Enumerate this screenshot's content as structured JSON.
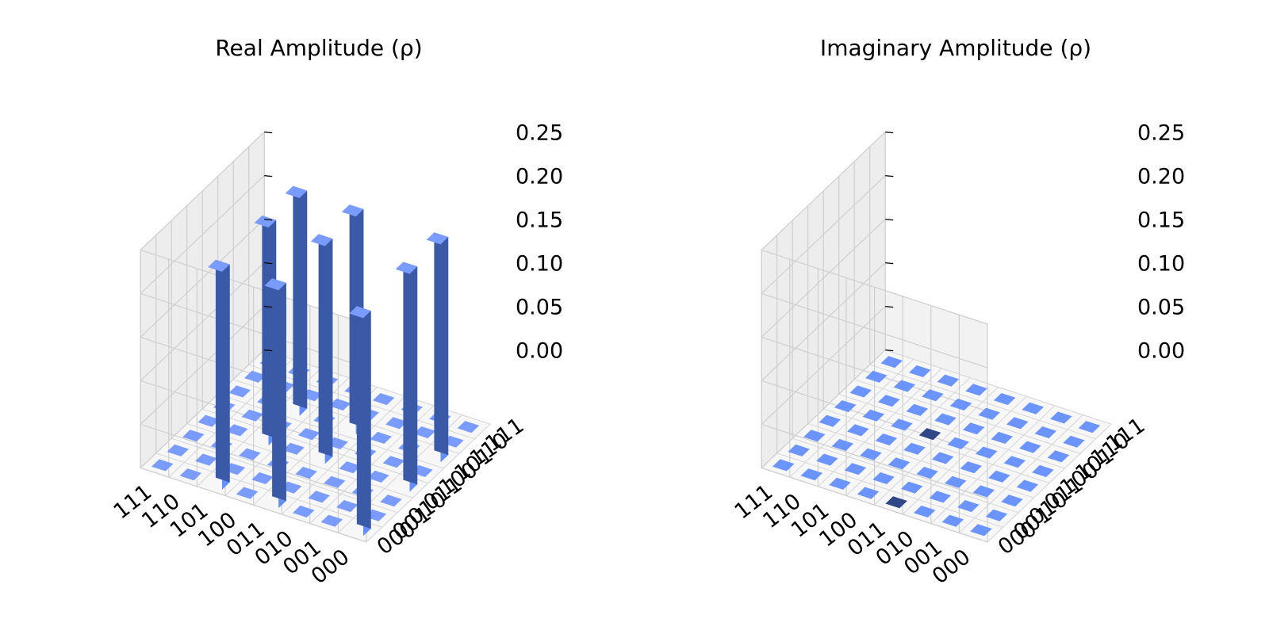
{
  "chart_data": [
    {
      "type": "bar3d",
      "title": "Real Amplitude (ρ)",
      "row_labels": [
        "000",
        "001",
        "010",
        "011",
        "100",
        "101",
        "110",
        "111"
      ],
      "col_labels": [
        "000",
        "001",
        "010",
        "011",
        "100",
        "101",
        "110",
        "111"
      ],
      "zticks": [
        "0.00",
        "0.05",
        "0.10",
        "0.15",
        "0.20",
        "0.25"
      ],
      "zlim": [
        0,
        0.25
      ],
      "values": [
        [
          0.25,
          0,
          0,
          0.25,
          0,
          0.25,
          0,
          0
        ],
        [
          0,
          0,
          0,
          0,
          0,
          0,
          0,
          0
        ],
        [
          0,
          0,
          0,
          0,
          0,
          0,
          0,
          0
        ],
        [
          0.25,
          0,
          0,
          0.25,
          0,
          0.25,
          0,
          0
        ],
        [
          0,
          0,
          0,
          0,
          0,
          0,
          0,
          0
        ],
        [
          0.25,
          0,
          0,
          0.25,
          0,
          0.25,
          0,
          0
        ],
        [
          0,
          0,
          0,
          0,
          0,
          0,
          0,
          0
        ],
        [
          0,
          0,
          0,
          0,
          0,
          0,
          0,
          0
        ]
      ],
      "colors": {
        "bar_top": "#7a9bff",
        "bar_front": "#648fff",
        "bar_side": "#3a5aa8",
        "negative": "#34478c"
      }
    },
    {
      "type": "bar3d",
      "title": "Imaginary Amplitude (ρ)",
      "row_labels": [
        "000",
        "001",
        "010",
        "011",
        "100",
        "101",
        "110",
        "111"
      ],
      "col_labels": [
        "000",
        "001",
        "010",
        "011",
        "100",
        "101",
        "110",
        "111"
      ],
      "zticks": [
        "0.00",
        "0.05",
        "0.10",
        "0.15",
        "0.20",
        "0.25"
      ],
      "zlim": [
        0,
        0.25
      ],
      "values": [
        [
          0,
          0,
          0,
          0,
          0,
          0,
          0,
          0
        ],
        [
          0,
          0,
          0,
          0,
          0,
          0,
          0,
          0
        ],
        [
          0,
          0,
          0,
          0,
          0,
          0,
          0,
          0
        ],
        [
          0,
          0,
          0,
          0,
          0,
          0,
          0,
          0
        ],
        [
          0,
          0,
          0,
          0,
          0,
          0,
          0,
          0
        ],
        [
          0,
          0,
          0,
          0,
          0,
          0,
          0,
          0
        ],
        [
          0,
          0,
          0,
          0,
          0,
          0,
          0,
          0
        ],
        [
          0,
          0,
          0,
          0,
          0,
          0,
          0,
          0
        ]
      ],
      "colors": {
        "bar_top": "#6c94ff",
        "negative": "#2f4687"
      }
    }
  ]
}
